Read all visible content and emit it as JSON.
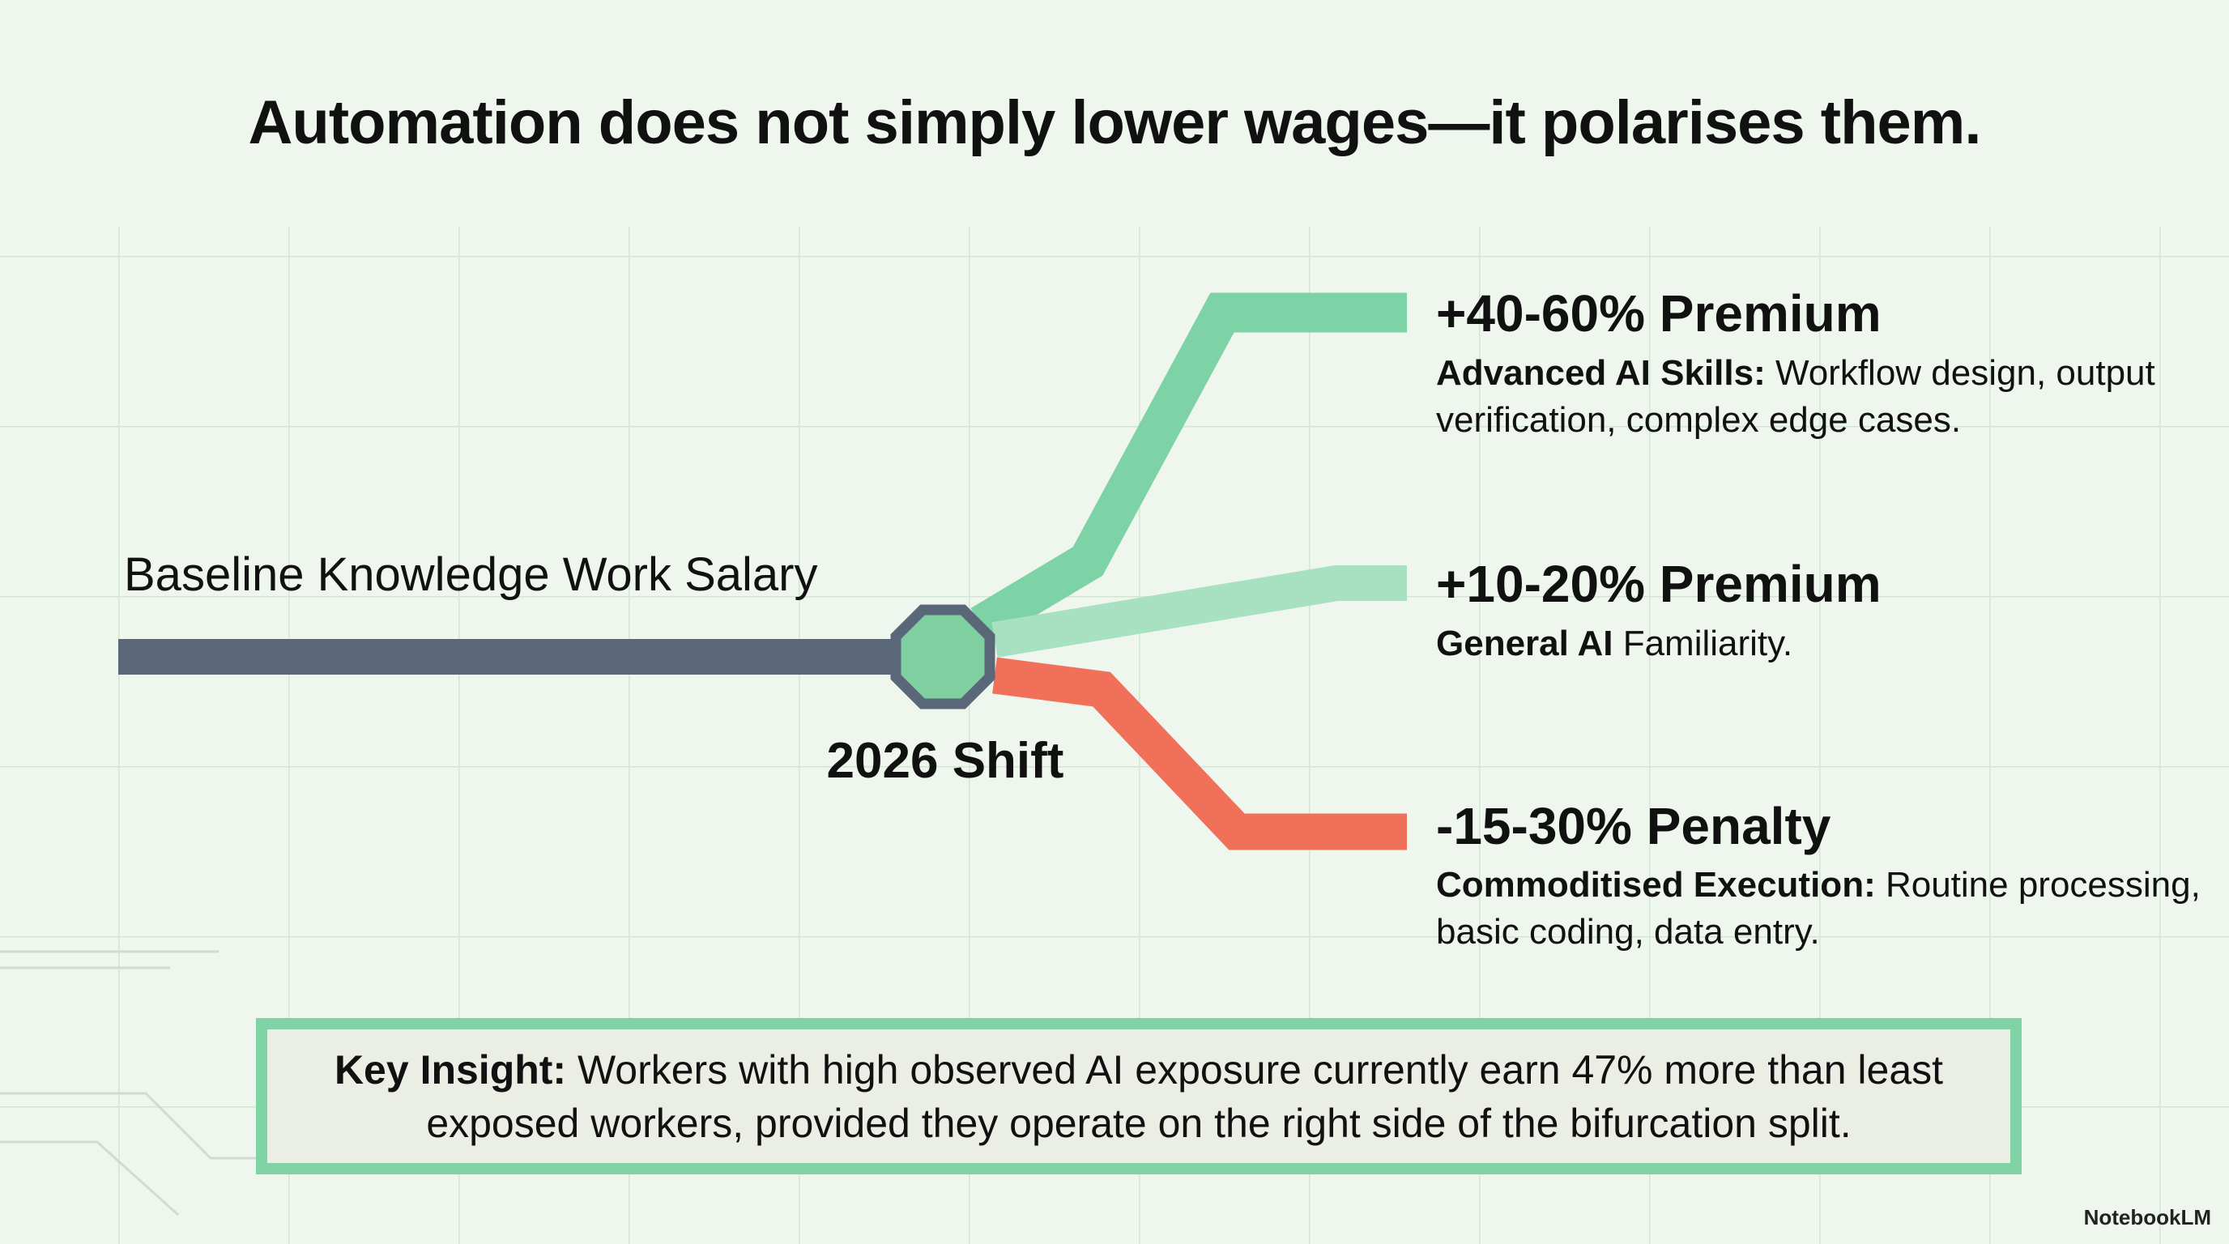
{
  "header": {
    "title": "Automation does not simply lower wages—it polarises them."
  },
  "baseline": {
    "label": "Baseline Knowledge Work Salary"
  },
  "shift": {
    "label": "2026 Shift"
  },
  "branches": [
    {
      "heading": "+40-60% Premium",
      "bold": "Advanced AI Skills:",
      "text": "Workflow design, output verification, complex edge cases."
    },
    {
      "heading": "+10-20% Premium",
      "bold": "General AI",
      "text": "Familiarity."
    },
    {
      "heading": "-15-30% Penalty",
      "bold": "Commoditised Execution:",
      "text": "Routine processing, basic coding, data entry."
    }
  ],
  "insight": {
    "bold": "Key Insight:",
    "text": "Workers with high observed AI exposure currently earn 47% more than least exposed workers, provided they operate on the right side of the bifurcation split."
  },
  "watermark": "NotebookLM"
}
